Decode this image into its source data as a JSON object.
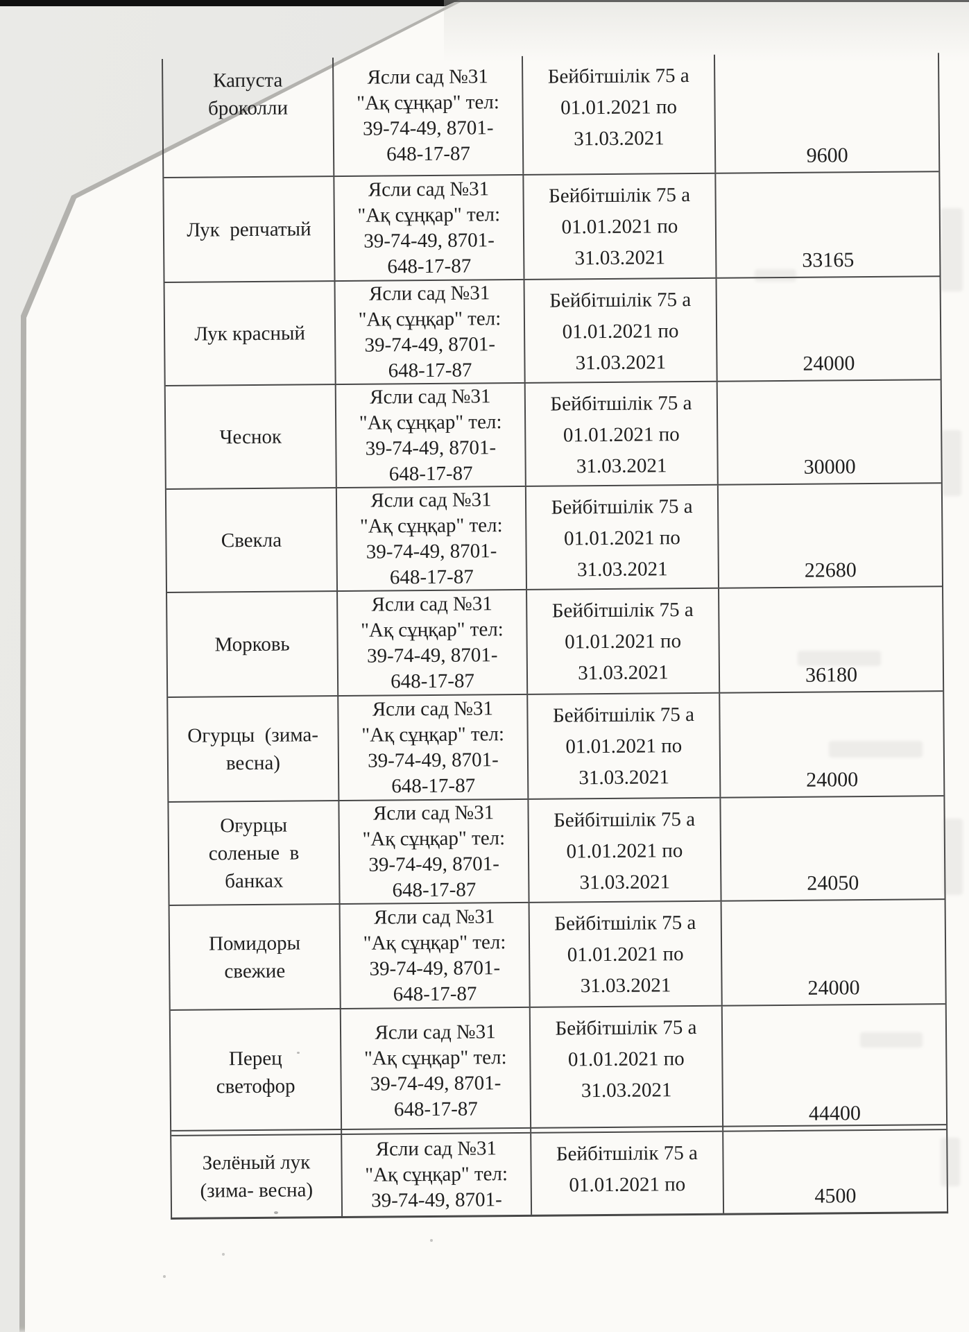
{
  "table": {
    "rows": [
      {
        "product_lines": [
          "Капуста",
          "броколли"
        ],
        "supplier_lines": [
          "Ясли сад №31",
          "\"Ақ сұңқар\" тел:",
          "39-74-49, 8701-",
          "648-17-87"
        ],
        "period_lines": [
          "Бейбітшілік 75 а",
          "01.01.2021 по",
          "31.03.2021"
        ],
        "price": "9600"
      },
      {
        "product_lines": [
          "Лук  репчатый"
        ],
        "supplier_lines": [
          "Ясли сад №31",
          "\"Ақ сұңқар\" тел:",
          "39-74-49, 8701-",
          "648-17-87"
        ],
        "period_lines": [
          "Бейбітшілік 75 а",
          "01.01.2021 по",
          "31.03.2021"
        ],
        "price": "33165"
      },
      {
        "product_lines": [
          "Лук красный"
        ],
        "supplier_lines": [
          "Ясли сад №31",
          "\"Ақ сұңқар\" тел:",
          "39-74-49, 8701-",
          "648-17-87"
        ],
        "period_lines": [
          "Бейбітшілік 75 а",
          "01.01.2021 по",
          "31.03.2021"
        ],
        "price": "24000"
      },
      {
        "product_lines": [
          "Чеснок"
        ],
        "supplier_lines": [
          "Ясли сад №31",
          "\"Ақ сұңқар\" тел:",
          "39-74-49, 8701-",
          "648-17-87"
        ],
        "period_lines": [
          "Бейбітшілік 75 а",
          "01.01.2021 по",
          "31.03.2021"
        ],
        "price": "30000"
      },
      {
        "product_lines": [
          "Свекла"
        ],
        "supplier_lines": [
          "Ясли сад №31",
          "\"Ақ сұңқар\" тел:",
          "39-74-49, 8701-",
          "648-17-87"
        ],
        "period_lines": [
          "Бейбітшілік 75 а",
          "01.01.2021 по",
          "31.03.2021"
        ],
        "price": "22680"
      },
      {
        "product_lines": [
          "Морковь"
        ],
        "supplier_lines": [
          "Ясли сад №31",
          "\"Ақ сұңқар\" тел:",
          "39-74-49, 8701-",
          "648-17-87"
        ],
        "period_lines": [
          "Бейбітшілік 75 а",
          "01.01.2021 по",
          "31.03.2021"
        ],
        "price": "36180"
      },
      {
        "product_lines": [
          "Огурцы  (зима-",
          "весна)"
        ],
        "supplier_lines": [
          "Ясли сад №31",
          "\"Ақ сұңқар\" тел:",
          "39-74-49, 8701-",
          "648-17-87"
        ],
        "period_lines": [
          "Бейбітшілік 75 а",
          "01.01.2021 по",
          "31.03.2021"
        ],
        "price": "24000"
      },
      {
        "product_lines": [
          "Огурцы",
          "соленые  в",
          "банках"
        ],
        "supplier_lines": [
          "Ясли сад №31",
          "\"Ақ сұңқар\" тел:",
          "39-74-49, 8701-",
          "648-17-87"
        ],
        "period_lines": [
          "Бейбітшілік 75 а",
          "01.01.2021 по",
          "31.03.2021"
        ],
        "price": "24050"
      },
      {
        "product_lines": [
          "Помидоры",
          "свежие"
        ],
        "supplier_lines": [
          "Ясли сад №31",
          "\"Ақ сұңқар\" тел:",
          "39-74-49, 8701-",
          "648-17-87"
        ],
        "period_lines": [
          "Бейбітшілік 75 а",
          "01.01.2021 по",
          "31.03.2021"
        ],
        "price": "24000"
      },
      {
        "product_lines": [
          "Перец",
          "светофор"
        ],
        "supplier_lines": [
          "Ясли сад №31",
          "\"Ақ сұңқар\" тел:",
          "39-74-49, 8701-",
          "648-17-87"
        ],
        "period_lines": [
          "Бейбітшілік 75 а",
          "01.01.2021 по",
          "31.03.2021"
        ],
        "price": "44400"
      },
      {
        "product_lines": [
          "Зелёный лук",
          "(зима- весна)"
        ],
        "supplier_lines": [
          "Ясли сад №31",
          "\"Ақ сұңқар\" тел:",
          "39-74-49, 8701-"
        ],
        "period_lines": [
          "Бейбітшілік 75 а",
          "01.01.2021 по"
        ],
        "price": "4500"
      }
    ]
  }
}
